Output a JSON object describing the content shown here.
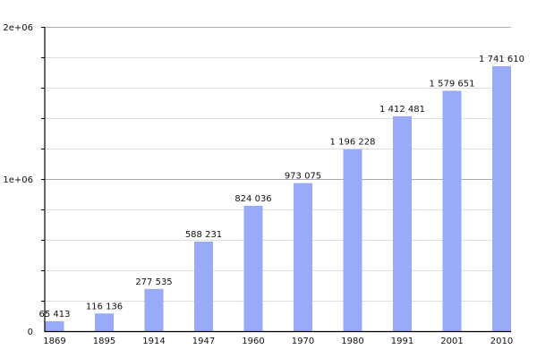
{
  "chart_data": {
    "type": "bar",
    "title": "",
    "xlabel": "",
    "ylabel": "",
    "categories": [
      "1869",
      "1895",
      "1914",
      "1947",
      "1960",
      "1970",
      "1980",
      "1991",
      "2001",
      "2010"
    ],
    "values": [
      65413,
      116136,
      277535,
      588231,
      824036,
      973075,
      1196228,
      1412481,
      1579651,
      1741610
    ],
    "data_labels": [
      "65 413",
      "116 136",
      "277 535",
      "588 231",
      "824 036",
      "973 075",
      "1 196 228",
      "1 412 481",
      "1 579 651",
      "1 741 610"
    ],
    "ylim": [
      0,
      2000000
    ],
    "yticks": [
      0,
      1000000,
      2000000
    ],
    "ytick_labels": [
      "0",
      "1e+06",
      "2e+06"
    ],
    "minor_grid_step": 200000,
    "grid": true,
    "legend": "none",
    "bar_color": "#99aaf8",
    "major_grid_color": "#aaaaaa",
    "minor_grid_color": "#e0e0e0"
  }
}
